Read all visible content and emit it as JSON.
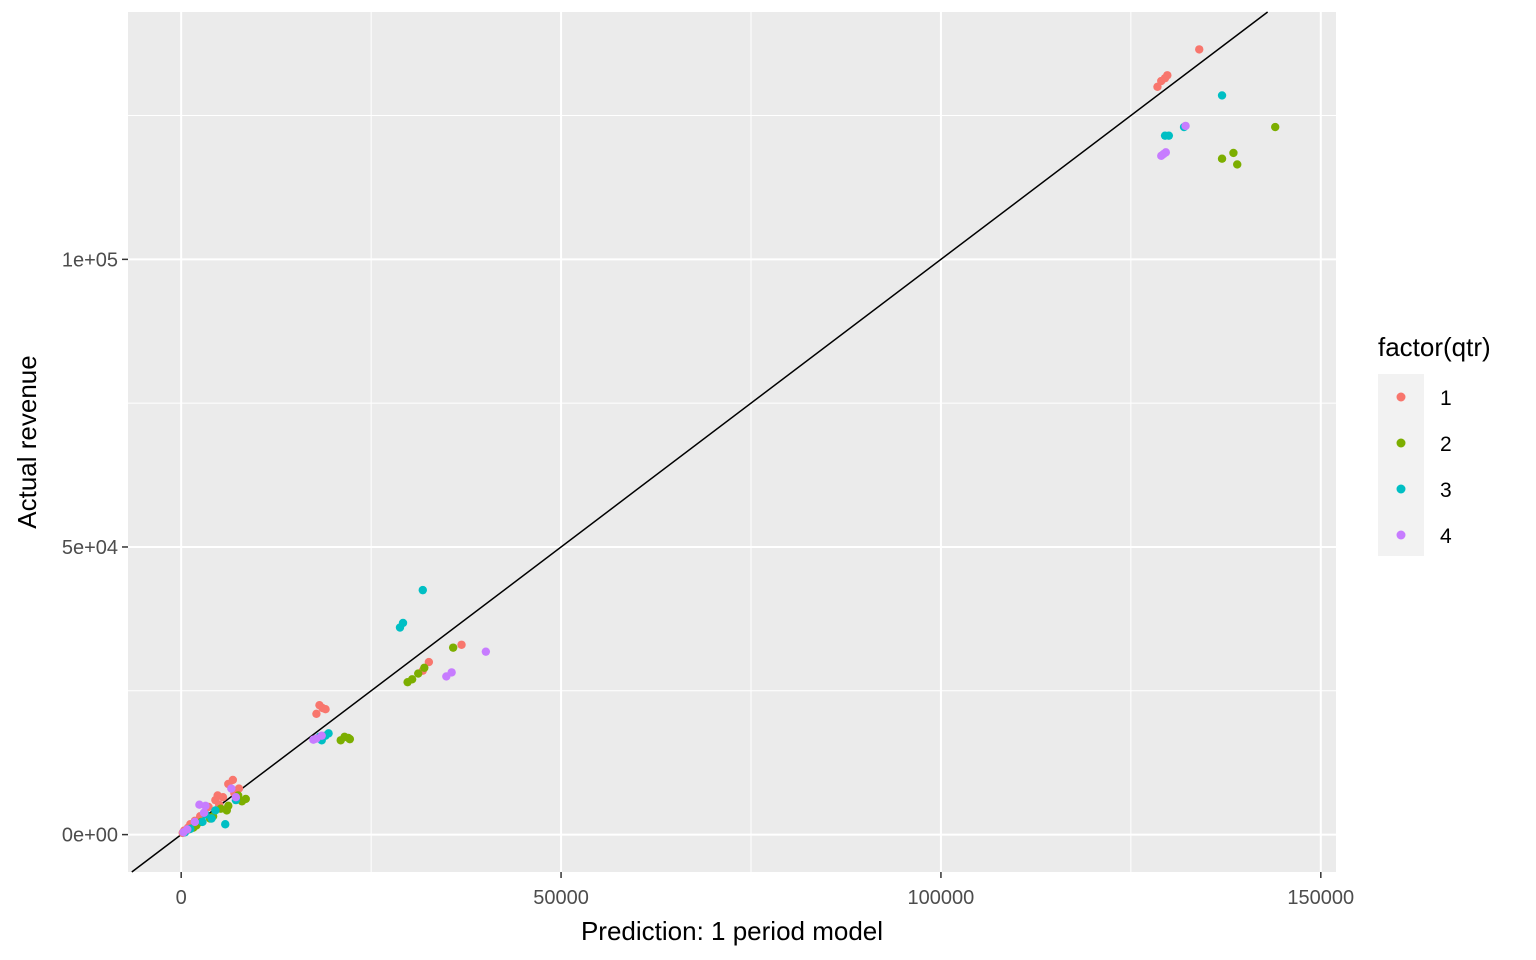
{
  "chart_data": {
    "type": "scatter",
    "xlabel": "Prediction: 1 period model",
    "ylabel": "Actual revenue",
    "xlim": [
      -7000,
      152000
    ],
    "ylim": [
      -6500,
      143000
    ],
    "x_ticks": [
      0,
      50000,
      100000,
      150000
    ],
    "x_tick_labels": [
      "0",
      "50000",
      "100000",
      "150000"
    ],
    "y_ticks": [
      0,
      50000,
      100000
    ],
    "y_tick_labels": [
      "0e+00",
      "5e+04",
      "1e+05"
    ],
    "grid": true,
    "panel_background": "#ebebeb",
    "grid_color": "#ffffff",
    "reference_line": {
      "type": "identity",
      "slope": 1,
      "intercept": 0,
      "color": "#000000"
    },
    "legend": {
      "title": "factor(qtr)",
      "placement": "right"
    },
    "series": [
      {
        "name": "1",
        "color": "#f8766d",
        "points": [
          [
            134000,
            136500
          ],
          [
            129500,
            131500
          ],
          [
            129800,
            132000
          ],
          [
            129000,
            131000
          ],
          [
            128500,
            130000
          ],
          [
            18200,
            22500
          ],
          [
            17800,
            21000
          ],
          [
            18600,
            22000
          ],
          [
            19000,
            21800
          ],
          [
            36900,
            33000
          ],
          [
            32600,
            30000
          ],
          [
            31800,
            28500
          ],
          [
            6800,
            9500
          ],
          [
            6200,
            8800
          ],
          [
            7600,
            8000
          ],
          [
            7000,
            7200
          ],
          [
            5500,
            6500
          ],
          [
            4800,
            6800
          ],
          [
            4500,
            6000
          ],
          [
            5000,
            5200
          ],
          [
            3600,
            4800
          ],
          [
            6000,
            4500
          ],
          [
            2500,
            3200
          ],
          [
            1800,
            2400
          ],
          [
            1200,
            1800
          ],
          [
            900,
            1200
          ],
          [
            400,
            700
          ],
          [
            200,
            300
          ]
        ]
      },
      {
        "name": "2",
        "color": "#7cae00",
        "points": [
          [
            144000,
            123000
          ],
          [
            138500,
            118500
          ],
          [
            137000,
            117500
          ],
          [
            139000,
            116500
          ],
          [
            22000,
            16800
          ],
          [
            21500,
            17000
          ],
          [
            21000,
            16400
          ],
          [
            22200,
            16600
          ],
          [
            35800,
            32500
          ],
          [
            32000,
            29000
          ],
          [
            29800,
            26500
          ],
          [
            30400,
            27000
          ],
          [
            31200,
            28000
          ],
          [
            8500,
            6200
          ],
          [
            8000,
            5800
          ],
          [
            7500,
            6800
          ],
          [
            6200,
            5000
          ],
          [
            6000,
            4200
          ],
          [
            5200,
            4500
          ],
          [
            4200,
            3200
          ],
          [
            3800,
            2800
          ],
          [
            2600,
            2200
          ],
          [
            2000,
            1600
          ],
          [
            1600,
            1200
          ],
          [
            1000,
            900
          ]
        ]
      },
      {
        "name": "3",
        "color": "#00bfc4",
        "points": [
          [
            137000,
            128500
          ],
          [
            132000,
            123000
          ],
          [
            129500,
            121500
          ],
          [
            130000,
            121500
          ],
          [
            31800,
            42500
          ],
          [
            29200,
            36800
          ],
          [
            28800,
            36000
          ],
          [
            19400,
            17600
          ],
          [
            19000,
            17200
          ],
          [
            18500,
            16400
          ],
          [
            18200,
            17000
          ],
          [
            5800,
            1800
          ],
          [
            7200,
            6000
          ],
          [
            4500,
            4200
          ],
          [
            3200,
            3500
          ],
          [
            4000,
            2800
          ],
          [
            2800,
            2200
          ],
          [
            1200,
            1000
          ],
          [
            500,
            400
          ]
        ]
      },
      {
        "name": "4",
        "color": "#c77cff",
        "points": [
          [
            132200,
            123200
          ],
          [
            129600,
            118600
          ],
          [
            129000,
            118000
          ],
          [
            129300,
            118300
          ],
          [
            40100,
            31800
          ],
          [
            35600,
            28200
          ],
          [
            34900,
            27500
          ],
          [
            18500,
            17200
          ],
          [
            17800,
            16700
          ],
          [
            17400,
            16500
          ],
          [
            2400,
            5200
          ],
          [
            3200,
            5000
          ],
          [
            6600,
            8000
          ],
          [
            7200,
            6500
          ],
          [
            3000,
            3800
          ],
          [
            1800,
            2200
          ],
          [
            800,
            900
          ],
          [
            300,
            400
          ]
        ]
      }
    ]
  }
}
